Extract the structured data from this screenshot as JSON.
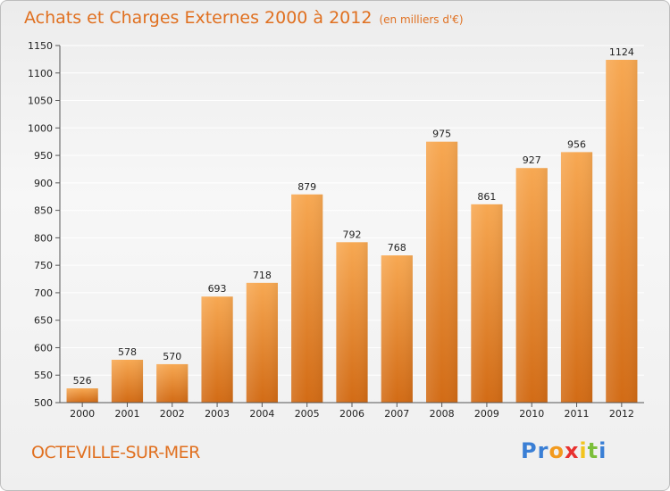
{
  "title": {
    "main": "Achats et Charges Externes 2000 à 2012",
    "unit": "(en milliers d'€)"
  },
  "commune": "OCTEVILLE-SUR-MER",
  "logo": {
    "letters": [
      "P",
      "r",
      "o",
      "x",
      "i",
      "t",
      "i"
    ],
    "colors": [
      "#3a7fd5",
      "#3a7fd5",
      "#f29a1e",
      "#e8312f",
      "#f2c41e",
      "#7cbf3a",
      "#3a7fd5"
    ]
  },
  "colors": {
    "bar_top": "#f7a852",
    "bar_bottom": "#d26b15",
    "title": "#e07020",
    "grid": "#ffffff"
  },
  "chart_data": {
    "type": "bar",
    "categories": [
      "2000",
      "2001",
      "2002",
      "2003",
      "2004",
      "2005",
      "2006",
      "2007",
      "2008",
      "2009",
      "2010",
      "2011",
      "2012"
    ],
    "values": [
      526,
      578,
      570,
      693,
      718,
      879,
      792,
      768,
      975,
      861,
      927,
      956,
      1124
    ],
    "yticks": [
      500,
      550,
      600,
      650,
      700,
      750,
      800,
      850,
      900,
      950,
      1000,
      1050,
      1100,
      1150
    ],
    "ylim": [
      500,
      1150
    ],
    "grid": true,
    "legend": "none"
  }
}
